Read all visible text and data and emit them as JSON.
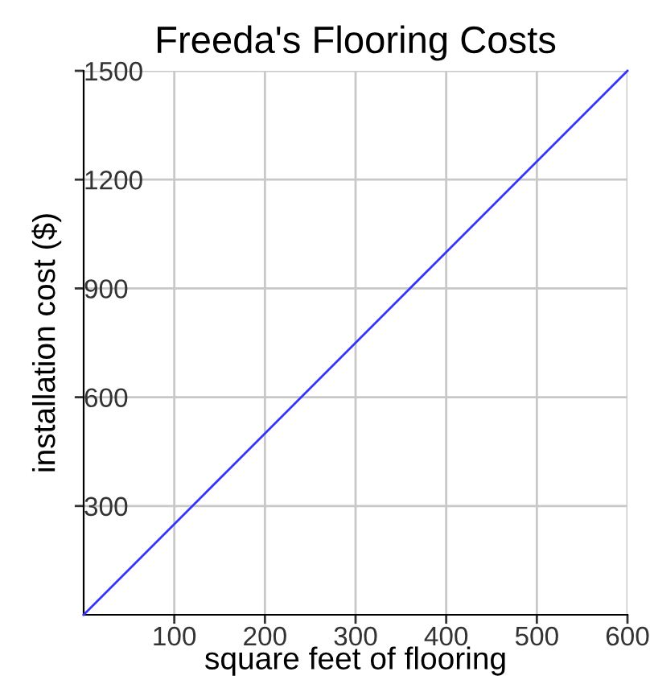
{
  "chart_data": {
    "type": "line",
    "title": "Freeda's Flooring Costs",
    "xlabel": "square feet of flooring",
    "ylabel": "installation cost ($)",
    "x": [
      0,
      600
    ],
    "series": [
      {
        "color": "#3333ff",
        "values": [
          0,
          1500
        ]
      }
    ],
    "xlim": [
      0,
      600
    ],
    "ylim": [
      0,
      1500
    ],
    "xticks": [
      100,
      200,
      300,
      400,
      500,
      600
    ],
    "yticks": [
      300,
      600,
      900,
      1200,
      1500
    ],
    "grid": true,
    "marker": "none",
    "line_style": "solid"
  }
}
